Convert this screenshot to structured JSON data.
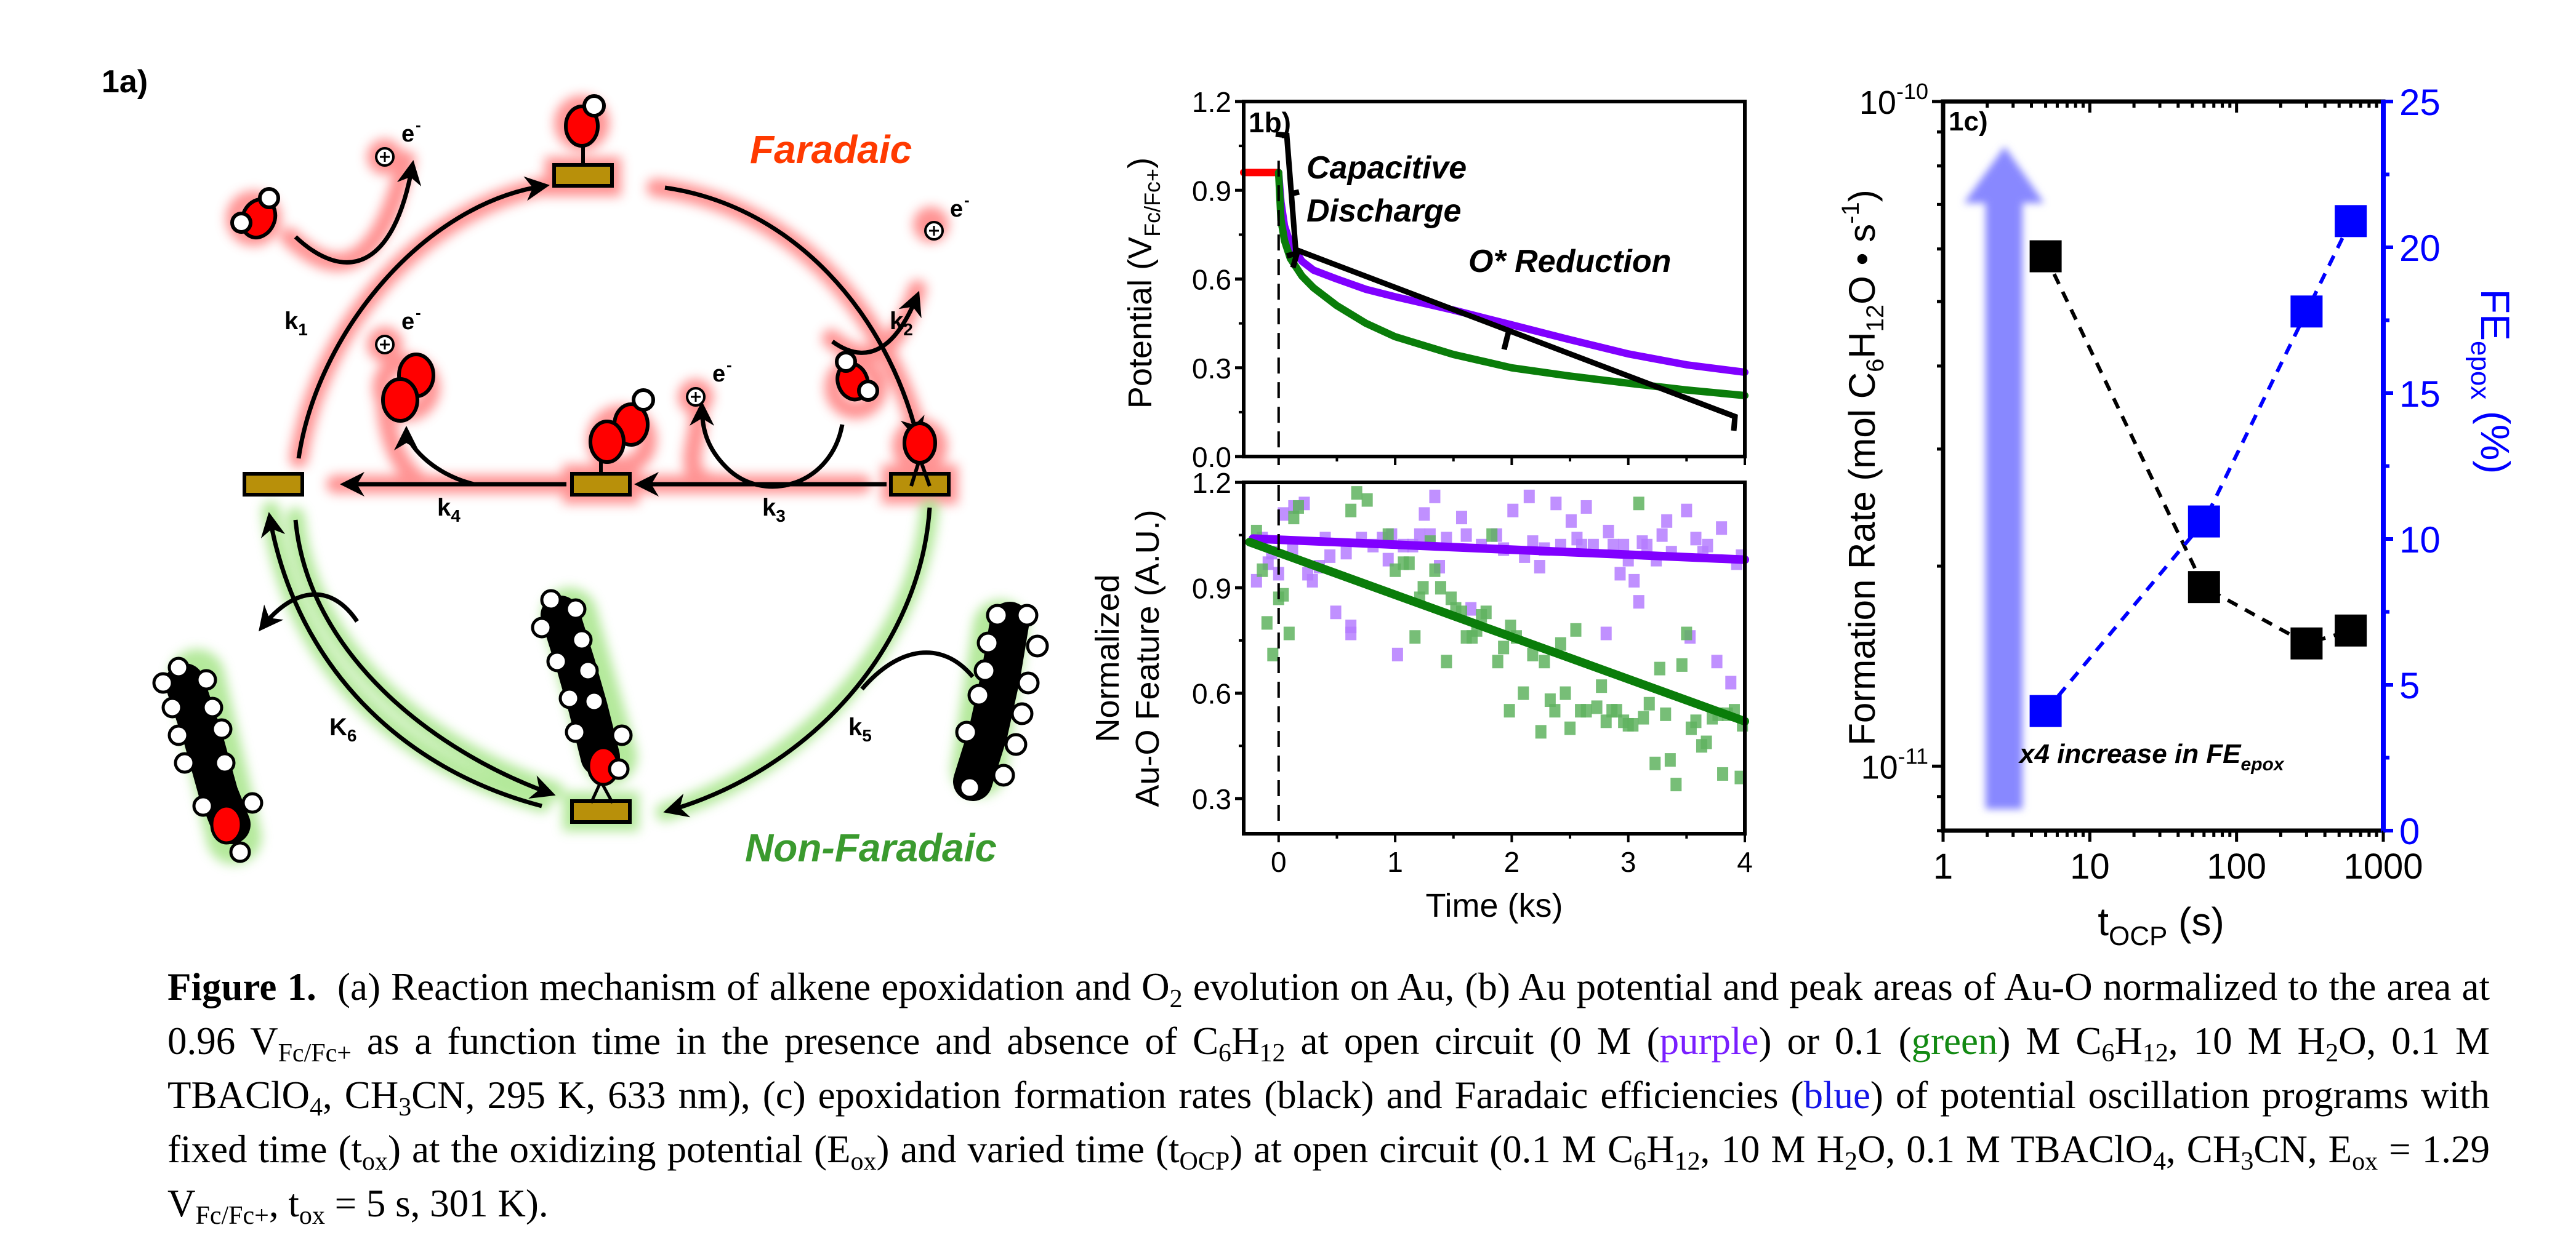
{
  "panel_a": {
    "label": "1a)",
    "faradaic_label": "Faradaic",
    "non_faradaic_label": "Non-Faradaic",
    "rate_labels": {
      "k1": "k",
      "k1_sub": "1",
      "k2": "k",
      "k2_sub": "2",
      "k3": "k",
      "k3_sub": "3",
      "k4": "k",
      "k4_sub": "4",
      "k5": "k",
      "k5_sub": "5",
      "k6": "K",
      "k6_sub": "6"
    },
    "charge_label": "e",
    "charge_sup": "-",
    "icons": [
      "proton-icon",
      "water-molecule-icon",
      "oxygen-adatom-icon",
      "hydroxyl-icon",
      "ooh-icon",
      "o2-molecule-icon",
      "au-site-icon",
      "cyclohexene-icon",
      "epoxide-icon"
    ],
    "colors": {
      "faradaic": "#ff3a00",
      "non_faradaic": "#3a9a2e",
      "gold": "#b8900a",
      "oxygen": "#ff0000",
      "glow_red": "#ff8080",
      "glow_green": "#9be27a"
    }
  },
  "chart_data": [
    {
      "id": "1b-top",
      "type": "line",
      "panel_label": "1b)",
      "xlabel": "",
      "ylabel": "Potential (V",
      "ylabel_sub": "Fc/Fc+",
      "ylabel_end": ")",
      "xlim": [
        -0.3,
        4.0
      ],
      "ylim": [
        0.0,
        1.2
      ],
      "yticks": [
        "0.0",
        "0.3",
        "0.6",
        "0.9",
        "1.2"
      ],
      "ytick_values": [
        0.0,
        0.3,
        0.6,
        0.9,
        1.2
      ],
      "xtick_values": [
        0,
        1,
        2,
        3,
        4
      ],
      "annotations": [
        "Capacitive",
        "Discharge",
        "O* Reduction"
      ],
      "vline_x": 0,
      "series": [
        {
          "name": "oxidizing hold",
          "color": "#ff0000",
          "x": [
            -0.3,
            0.0
          ],
          "y": [
            0.96,
            0.96
          ]
        },
        {
          "name": "0 M C6H12 (purple)",
          "color": "#8000ff",
          "x": [
            0.0,
            0.02,
            0.05,
            0.1,
            0.2,
            0.3,
            0.5,
            0.75,
            1.0,
            1.5,
            2.0,
            2.5,
            3.0,
            3.5,
            4.0
          ],
          "y": [
            0.96,
            0.86,
            0.78,
            0.72,
            0.66,
            0.63,
            0.6,
            0.565,
            0.54,
            0.495,
            0.445,
            0.395,
            0.347,
            0.31,
            0.285
          ]
        },
        {
          "name": "0.1 M C6H12 (green)",
          "color": "#0a7d0a",
          "x": [
            0.0,
            0.02,
            0.05,
            0.1,
            0.2,
            0.3,
            0.5,
            0.75,
            1.0,
            1.5,
            2.0,
            2.5,
            3.0,
            3.5,
            4.0
          ],
          "y": [
            0.96,
            0.8,
            0.73,
            0.67,
            0.61,
            0.57,
            0.51,
            0.45,
            0.405,
            0.345,
            0.3,
            0.272,
            0.248,
            0.225,
            0.206
          ]
        }
      ]
    },
    {
      "id": "1b-bottom",
      "type": "scatter",
      "xlabel": "Time (ks)",
      "ylabel_line1": "Normalized",
      "ylabel_line2": "Au-O Feature (A.U.)",
      "xlim": [
        -0.3,
        4.0
      ],
      "ylim": [
        0.2,
        1.2
      ],
      "xticks": [
        "0",
        "1",
        "2",
        "3",
        "4"
      ],
      "xtick_values": [
        0,
        1,
        2,
        3,
        4
      ],
      "yticks": [
        "0.3",
        "0.6",
        "0.9",
        "1.2"
      ],
      "ytick_values": [
        0.3,
        0.6,
        0.9,
        1.2
      ],
      "vline_x": 0,
      "series": [
        {
          "name": "0 M C6H12 (purple)",
          "color": "#b57cff",
          "x": [
            -0.19,
            -0.14,
            -0.09,
            -0.06,
            0.0,
            0.04,
            0.12,
            0.13,
            0.22,
            0.25,
            0.29,
            0.35,
            0.4,
            0.44,
            0.49,
            0.58,
            0.62,
            0.62,
            0.71,
            0.81,
            0.89,
            0.94,
            0.97,
            1.02,
            1.07,
            1.15,
            1.21,
            1.25,
            1.3,
            1.34,
            1.38,
            1.44,
            1.57,
            1.61,
            1.65,
            1.74,
            1.87,
            1.93,
            2.01,
            2.11,
            2.15,
            2.18,
            2.24,
            2.28,
            2.38,
            2.42,
            2.51,
            2.56,
            2.6,
            2.64,
            2.7,
            2.81,
            2.83,
            2.87,
            2.93,
            2.96,
            3.0,
            3.05,
            3.09,
            3.12,
            3.16,
            3.24,
            3.29,
            3.33,
            3.37,
            3.5,
            3.53,
            3.58,
            3.64,
            3.68,
            3.76,
            3.8,
            3.88,
            3.93,
            3.97
          ],
          "y": [
            0.92,
            1.04,
            0.97,
            1.0,
            0.94,
            1.11,
            1.01,
            1.13,
            1.14,
            0.94,
            0.92,
            0.96,
            1.04,
            0.99,
            0.83,
            1.0,
            0.77,
            0.79,
            1.04,
            1.02,
            1.04,
            0.98,
            1.05,
            0.71,
            1.02,
            1.02,
            1.05,
            1.11,
            1.05,
            1.16,
            0.96,
            1.04,
            1.1,
            1.05,
            0.84,
            1.02,
            1.05,
            1.01,
            1.12,
            0.99,
            1.16,
            1.03,
            0.96,
            1.01,
            1.14,
            1.02,
            1.09,
            1.04,
            1.02,
            1.13,
            1.02,
            0.77,
            1.06,
            1.02,
            0.94,
            1.02,
            0.98,
            0.92,
            0.86,
            1.03,
            1.02,
            0.98,
            1.05,
            1.09,
            1.0,
            1.12,
            0.76,
            1.04,
            1.0,
            1.02,
            0.69,
            1.07,
            0.63,
            0.97,
            0.99
          ]
        },
        {
          "name": "0.1 M C6H12 (green)",
          "color": "#5fb35f",
          "x": [
            -0.19,
            -0.14,
            -0.1,
            -0.05,
            0.0,
            0.04,
            0.09,
            0.13,
            0.17,
            0.62,
            0.67,
            0.76,
            0.94,
            1.0,
            1.07,
            1.12,
            1.17,
            1.21,
            1.24,
            1.3,
            1.34,
            1.39,
            1.44,
            1.48,
            1.52,
            1.57,
            1.61,
            1.66,
            1.7,
            1.74,
            1.78,
            1.83,
            1.88,
            1.93,
            1.98,
            1.99,
            2.04,
            2.1,
            2.18,
            2.25,
            2.28,
            2.33,
            2.37,
            2.42,
            2.46,
            2.5,
            2.55,
            2.59,
            2.64,
            2.73,
            2.77,
            2.81,
            2.86,
            2.9,
            2.96,
            3.0,
            3.04,
            3.09,
            3.13,
            3.18,
            3.23,
            3.27,
            3.32,
            3.36,
            3.41,
            3.46,
            3.5,
            3.54,
            3.58,
            3.63,
            3.67,
            3.72,
            3.77,
            3.81,
            3.85,
            3.91,
            3.96,
            3.98
          ],
          "y": [
            1.06,
            0.95,
            0.8,
            0.71,
            0.87,
            0.88,
            0.77,
            1.1,
            1.13,
            1.12,
            1.17,
            1.15,
            1.05,
            0.95,
            0.97,
            0.97,
            0.76,
            0.87,
            0.9,
            1.03,
            0.95,
            0.9,
            0.69,
            0.87,
            0.84,
            0.83,
            0.76,
            0.76,
            0.78,
            0.82,
            0.83,
            1.05,
            0.69,
            0.73,
            0.55,
            0.79,
            0.76,
            0.6,
            0.71,
            0.49,
            0.69,
            0.58,
            0.55,
            0.74,
            0.6,
            0.5,
            0.78,
            0.55,
            0.55,
            0.56,
            0.62,
            0.52,
            0.55,
            0.55,
            0.52,
            0.51,
            0.51,
            1.14,
            0.53,
            0.57,
            0.4,
            0.67,
            0.54,
            0.41,
            0.34,
            0.68,
            0.77,
            0.5,
            0.52,
            0.45,
            0.46,
            0.53,
            0.54,
            0.37,
            0.54,
            0.55,
            0.36,
            0.51
          ]
        },
        {
          "name": "0 M C6H12 fit",
          "type": "line",
          "color": "#8000ff",
          "x": [
            -0.22,
            4.0
          ],
          "y": [
            1.04,
            0.98
          ]
        },
        {
          "name": "0.1 M C6H12 fit",
          "type": "line",
          "color": "#0a7d0a",
          "x": [
            -0.25,
            4.0
          ],
          "y": [
            1.03,
            0.52
          ]
        }
      ]
    },
    {
      "id": "1c",
      "type": "scatter",
      "panel_label": "1c)",
      "xlabel": "t",
      "xlabel_sub": "OCP",
      "xlabel_end": " (s)",
      "xscale": "log",
      "xlim": [
        1,
        1000
      ],
      "xticks": [
        "1",
        "10",
        "100",
        "1000"
      ],
      "xtick_values": [
        1,
        10,
        100,
        1000
      ],
      "ylabel_left": "Formation Rate (mol C",
      "ylabel_left_parts": [
        "Formation Rate (mol C",
        "6",
        "H",
        "12",
        "O • s",
        "-1",
        ")"
      ],
      "yscale_left": "log",
      "ylim_left": [
        8e-12,
        1e-10
      ],
      "yticks_left": [
        "10",
        "10"
      ],
      "yticks_left_exp": [
        "-11",
        "-10"
      ],
      "ytick_values_left": [
        1e-11,
        1e-10
      ],
      "ylabel_right": "FE",
      "ylabel_right_sub": "epox",
      "ylabel_right_end": " (%)",
      "ylim_right": [
        0,
        25
      ],
      "yticks_right": [
        "0",
        "5",
        "10",
        "15",
        "20",
        "25"
      ],
      "ytick_values_right": [
        0,
        5,
        10,
        15,
        20,
        25
      ],
      "annotation": "x4 increase in FE",
      "annotation_sub": "epox",
      "series": [
        {
          "name": "formation rate (black)",
          "axis": "left",
          "color": "#000000",
          "x": [
            5,
            60,
            300,
            600
          ],
          "y": [
            5.85e-11,
            1.86e-11,
            1.53e-11,
            1.6e-11
          ]
        },
        {
          "name": "FE epox (blue)",
          "axis": "right",
          "color": "#0000ff",
          "x": [
            5,
            60,
            300,
            600
          ],
          "y": [
            4.1,
            10.6,
            17.8,
            20.9
          ]
        }
      ]
    }
  ],
  "caption": {
    "fig_label": "Figure 1.",
    "parts": [
      "(a) Reaction mechanism of alkene epoxidation and O",
      "2",
      " evolution on Au, (b) Au potential and peak areas of Au-O normalized to the area at 0.96 V",
      "Fc/Fc+",
      " as a function time in the presence and absence of C",
      "6",
      "H",
      "12",
      " at open circuit (0 M (",
      "purple",
      ") or 0.1 (",
      "green",
      ") M C",
      "6",
      "H",
      "12",
      ", 10 M H",
      "2",
      "O, 0.1 M TBAClO",
      "4",
      ", CH",
      "3",
      "CN, 295 K, 633 nm), (c) epoxidation formation rates (black) and Faradaic efficiencies (",
      "blue",
      ") of potential oscillation programs with fixed time (t",
      "ox",
      ") at the oxidizing potential (E",
      "ox",
      ") and varied time (t",
      "OCP",
      ") at open circuit (0.1 M C",
      "6",
      "H",
      "12",
      ", 10 M H",
      "2",
      "O, 0.1 M TBAClO",
      "4",
      ", CH",
      "3",
      "CN, E",
      "ox",
      " = 1.29 V",
      "Fc/Fc+",
      ", t",
      "ox",
      " = 5 s, 301 K)."
    ]
  }
}
